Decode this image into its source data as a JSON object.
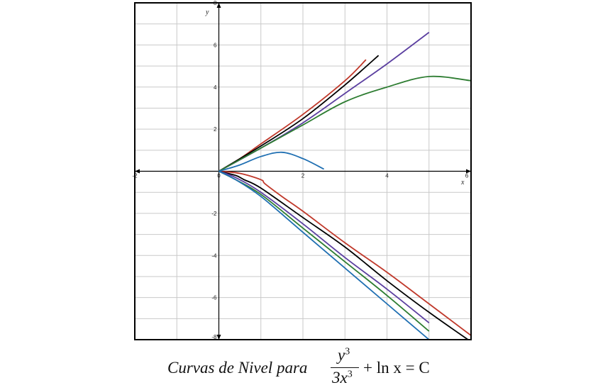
{
  "chart_data": {
    "type": "line",
    "title": "",
    "xlabel": "x",
    "ylabel": "y",
    "xlim": [
      -2,
      6
    ],
    "ylim": [
      -8,
      8
    ],
    "x_ticks": [
      -2,
      0,
      2,
      4,
      6
    ],
    "y_ticks": [
      -8,
      -6,
      -4,
      -2,
      0,
      2,
      4,
      6,
      8
    ],
    "grid": true,
    "legend": "none",
    "series": [
      {
        "color": "#c0392b",
        "upper": [
          [
            0,
            0
          ],
          [
            0.5,
            0.6
          ],
          [
            1,
            1.3
          ],
          [
            2,
            2.7
          ],
          [
            3,
            4.3
          ],
          [
            3.5,
            5.3
          ]
        ],
        "lower": [
          [
            0.5,
            -0.1
          ],
          [
            1,
            -0.4
          ],
          [
            1.1,
            -0.6
          ],
          [
            1.5,
            -1.2
          ],
          [
            2,
            -1.9
          ],
          [
            3,
            -3.4
          ],
          [
            4,
            -4.8
          ],
          [
            5,
            -6.3
          ],
          [
            6,
            -7.8
          ]
        ]
      },
      {
        "color": "#000000",
        "upper": [
          [
            0,
            0
          ],
          [
            1,
            1.2
          ],
          [
            2,
            2.5
          ],
          [
            3,
            4.1
          ],
          [
            3.8,
            5.5
          ]
        ],
        "lower": [
          [
            0.4,
            -0.2
          ],
          [
            0.6,
            -0.4
          ],
          [
            1,
            -0.8
          ],
          [
            2,
            -2.2
          ],
          [
            3,
            -3.6
          ],
          [
            4,
            -5.2
          ],
          [
            5,
            -6.7
          ],
          [
            6,
            -8.1
          ]
        ]
      },
      {
        "color": "#5b3fa0",
        "upper": [
          [
            0,
            0
          ],
          [
            1,
            1.1
          ],
          [
            2,
            2.3
          ],
          [
            3,
            3.7
          ],
          [
            4,
            5.1
          ],
          [
            5,
            6.6
          ]
        ],
        "lower": [
          [
            0.4,
            -0.3
          ],
          [
            1,
            -1.0
          ],
          [
            2,
            -2.5
          ],
          [
            3,
            -4.1
          ],
          [
            4,
            -5.6
          ],
          [
            5,
            -7.2
          ]
        ]
      },
      {
        "color": "#2e7d32",
        "upper": [
          [
            0,
            0
          ],
          [
            1,
            1.1
          ],
          [
            2,
            2.2
          ],
          [
            3,
            3.3
          ],
          [
            4,
            4.0
          ],
          [
            5,
            4.5
          ],
          [
            6,
            4.3
          ]
        ],
        "lower": [
          [
            0.4,
            -0.4
          ],
          [
            1,
            -1.1
          ],
          [
            2,
            -2.7
          ],
          [
            3,
            -4.3
          ],
          [
            4,
            -5.9
          ],
          [
            5,
            -7.6
          ]
        ]
      },
      {
        "color": "#1f6fb2",
        "upper": [
          [
            0,
            0
          ],
          [
            0.5,
            0.3
          ],
          [
            1,
            0.7
          ],
          [
            1.5,
            0.9
          ],
          [
            2,
            0.6
          ],
          [
            2.5,
            0.1
          ]
        ],
        "lower": [
          [
            0.4,
            -0.4
          ],
          [
            1,
            -1.2
          ],
          [
            2,
            -2.9
          ],
          [
            3,
            -4.6
          ],
          [
            4,
            -6.3
          ],
          [
            5,
            -8.0
          ]
        ]
      }
    ],
    "annotations": [
      {
        "text": "Curvas de Nivel para"
      }
    ]
  },
  "caption": {
    "label": "Curvas de Nivel para",
    "numerator": "y",
    "numerator_exp": "3",
    "denominator": "3x",
    "denominator_exp": "3",
    "rest": "+ ln x = C"
  }
}
